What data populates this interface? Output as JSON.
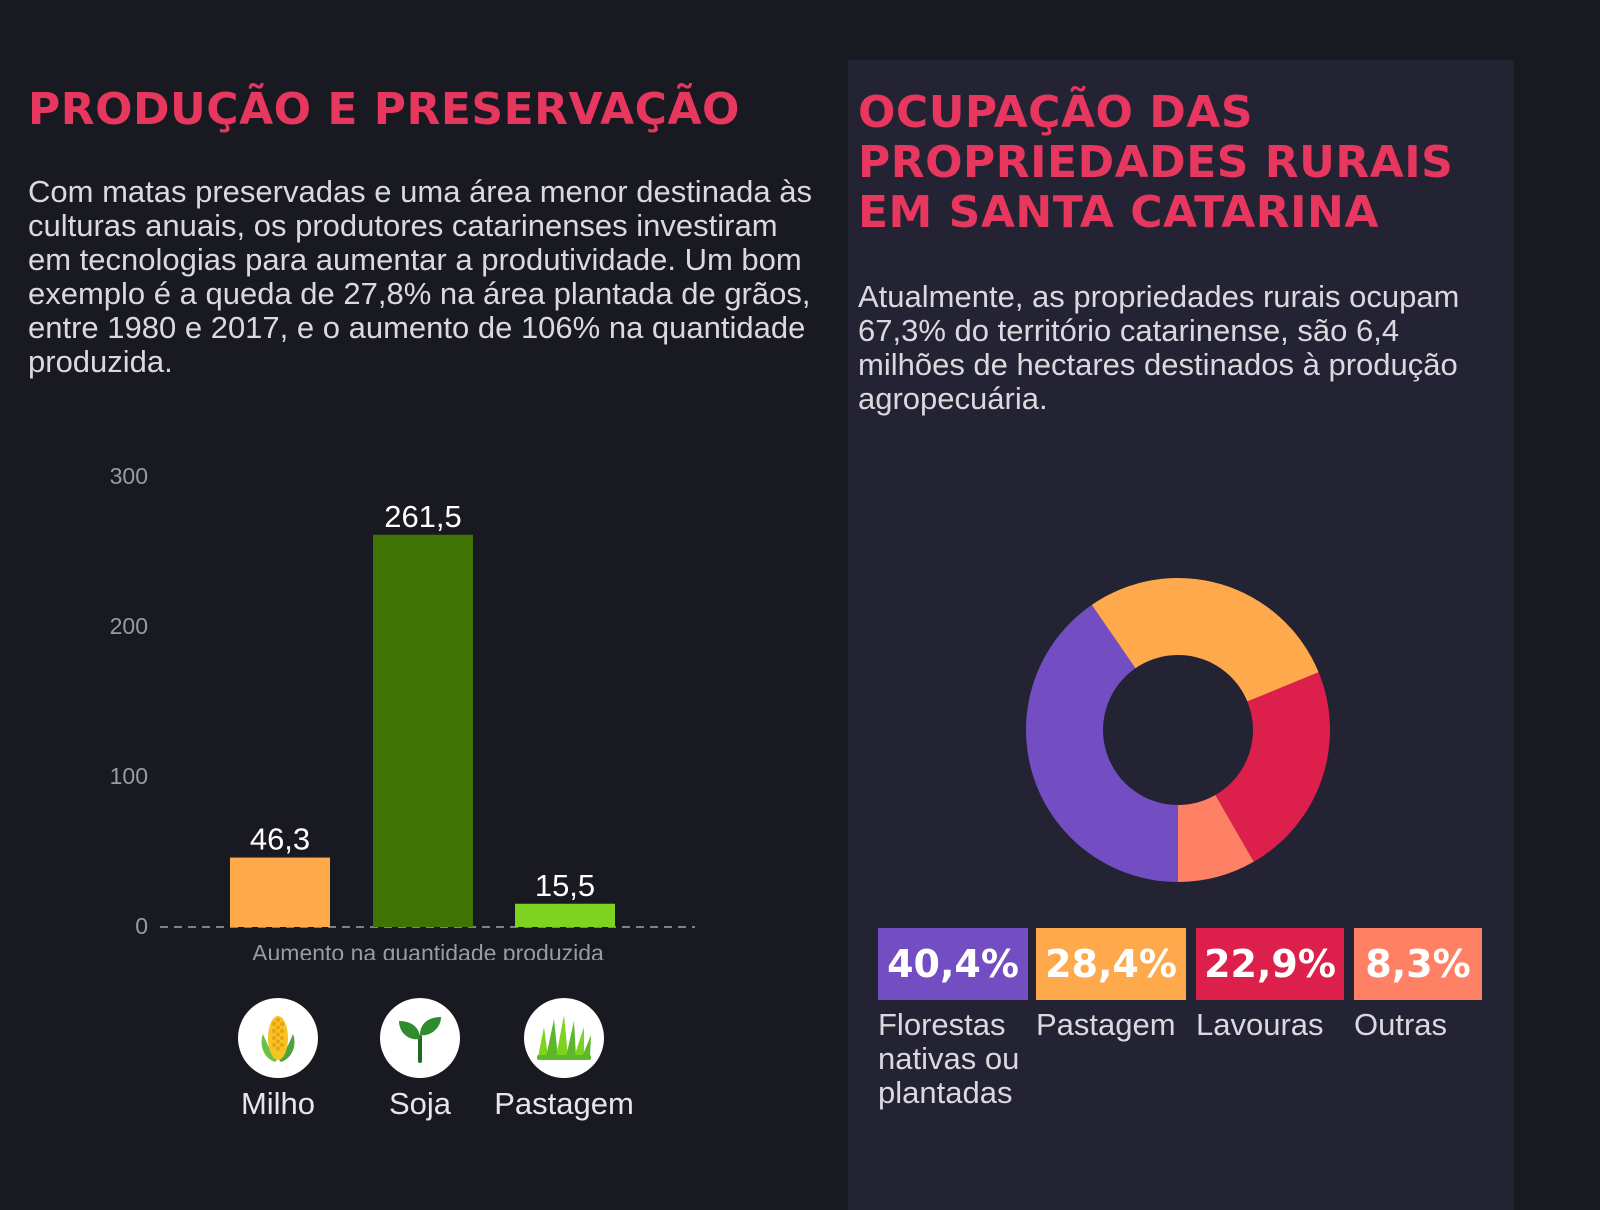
{
  "left": {
    "title": "PRODUÇÃO E PRESERVAÇÃO",
    "description": "Com matas preservadas e uma área menor destinada às culturas anuais, os produtores catarinenses investiram em tecnologias para aumentar a produtividade. Um bom exemplo é a queda de 27,8% na área plantada de grãos, entre 1980 e 2017, e o aumento de 106% na quantidade produzida.",
    "icons": [
      {
        "label": "Milho",
        "icon": "corn-icon"
      },
      {
        "label": "Soja",
        "icon": "sprout-icon"
      },
      {
        "label": "Pastagem",
        "icon": "grass-icon"
      }
    ]
  },
  "right": {
    "title": "OCUPAÇÃO DAS PROPRIEDADES RURAIS EM SANTA CATARINA",
    "description": "Atualmente, as propriedades rurais ocupam 67,3% do território catarinense, são 6,4 milhões de hectares destinados à produção agropecuária."
  },
  "chart_data": [
    {
      "type": "bar",
      "categories": [
        "Milho",
        "Soja",
        "Pastagem"
      ],
      "values": [
        46.3,
        261.5,
        15.5
      ],
      "value_labels": [
        "46,3",
        "261,5",
        "15,5"
      ],
      "colors": [
        "#ffa94d",
        "#3f7404",
        "#7ed321"
      ],
      "xlabel": "Aumento na quantidade produzida",
      "ylabel": "",
      "ylim": [
        0,
        300
      ],
      "yticks": [
        0,
        100,
        200,
        300
      ],
      "grid": false,
      "baseline_dashed": true
    },
    {
      "type": "pie",
      "donut": true,
      "slices": [
        {
          "label": "Florestas nativas ou plantadas",
          "value": 40.4,
          "display": "40,4%",
          "color": "#734ec2"
        },
        {
          "label": "Pastagem",
          "value": 28.4,
          "display": "28,4%",
          "color": "#ffa94d"
        },
        {
          "label": "Lavouras",
          "value": 22.9,
          "display": "22,9%",
          "color": "#dd1f4c"
        },
        {
          "label": "Outras",
          "value": 8.3,
          "display": "8,3%",
          "color": "#ff8165"
        }
      ],
      "legend_position": "bottom"
    }
  ]
}
